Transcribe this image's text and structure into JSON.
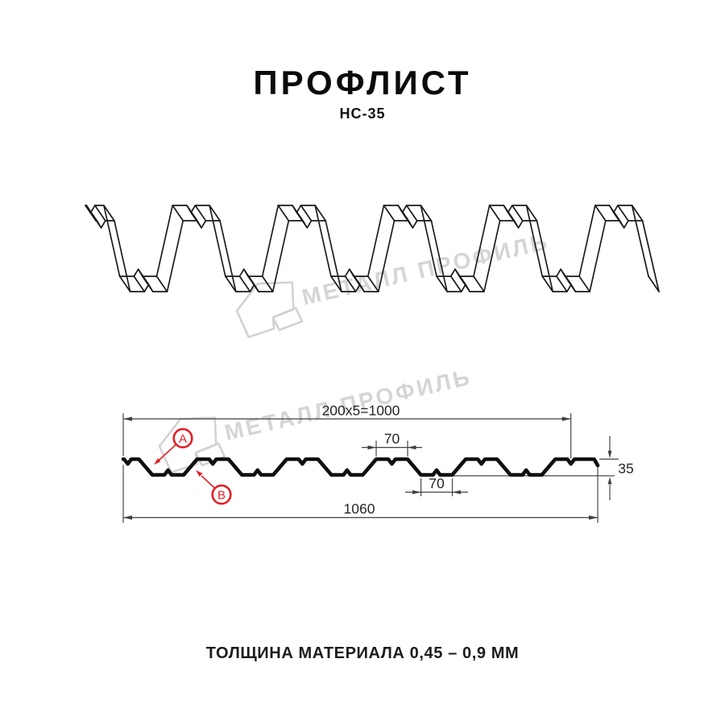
{
  "title": "ПРОФЛИСТ",
  "subtitle": "НС-35",
  "watermark": {
    "brand": "МЕТАЛЛ ПРОФИЛЬ"
  },
  "diagram": {
    "dim_working_width": "200x5=1000",
    "dim_rib_top_width": "70",
    "dim_rib_bottom_width": "70",
    "dim_height": "35",
    "dim_full_width": "1060",
    "label_face_a": "A",
    "label_face_b": "B"
  },
  "footer": {
    "thickness_note": "ТОЛЩИНА МАТЕРИАЛА 0,45 – 0,9 ММ"
  },
  "colors": {
    "accent_red": "#e31e24",
    "profile_line": "#0f0f0f",
    "dimension_line": "#3f3f3f",
    "watermark_gray": "#d5d5d5",
    "background": "#ffffff"
  }
}
